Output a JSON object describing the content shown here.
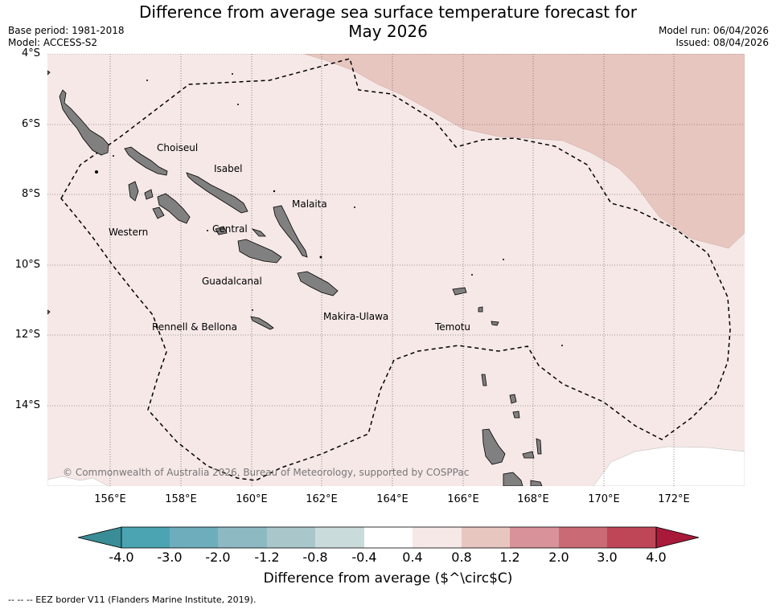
{
  "header": {
    "title_line1": "Difference from average sea surface temperature forecast for",
    "title_line2": "May 2026",
    "base_period": "Base period: 1981-2018",
    "model": "Model: ACCESS-S2",
    "model_run": "Model run: 06/04/2026",
    "issued": "Issued: 08/04/2026"
  },
  "map": {
    "lat_labels": [
      "4°S",
      "6°S",
      "8°S",
      "10°S",
      "12°S",
      "14°S"
    ],
    "lon_labels": [
      "156°E",
      "158°E",
      "160°E",
      "162°E",
      "164°E",
      "166°E",
      "168°E",
      "170°E",
      "172°E"
    ],
    "provinces": [
      "Choiseul",
      "Isabel",
      "Malaita",
      "Western",
      "Central",
      "Guadalcanal",
      "Makira-Ulawa",
      "Rennell & Bellona",
      "Temotu"
    ],
    "copyright": "© Commonwealth of Australia 2026, Bureau of Meteorology, supported by COSPPac",
    "colors": {
      "anomaly_04_08": "#f5e8e6",
      "anomaly_08_12": "#e8c6c0",
      "land": "#808080"
    }
  },
  "colorbar": {
    "ticks": [
      "-4.0",
      "-3.0",
      "-2.0",
      "-1.2",
      "-0.8",
      "-0.4",
      "0.4",
      "0.8",
      "1.2",
      "2.0",
      "3.0",
      "4.0"
    ],
    "colors": [
      "#3a8d96",
      "#4aa4b2",
      "#6eaebc",
      "#8db9c3",
      "#a9c7cb",
      "#cadbdc",
      "#ffffff",
      "#f5e8e6",
      "#e8c6c0",
      "#d8929a",
      "#c96a74",
      "#bf4656",
      "#a9193a"
    ],
    "title": "Difference from average ($^\\circ$C)"
  },
  "footer": {
    "eez_note": "--  --  -- EEZ border V11 (Flanders Marine Institute, 2019)."
  }
}
